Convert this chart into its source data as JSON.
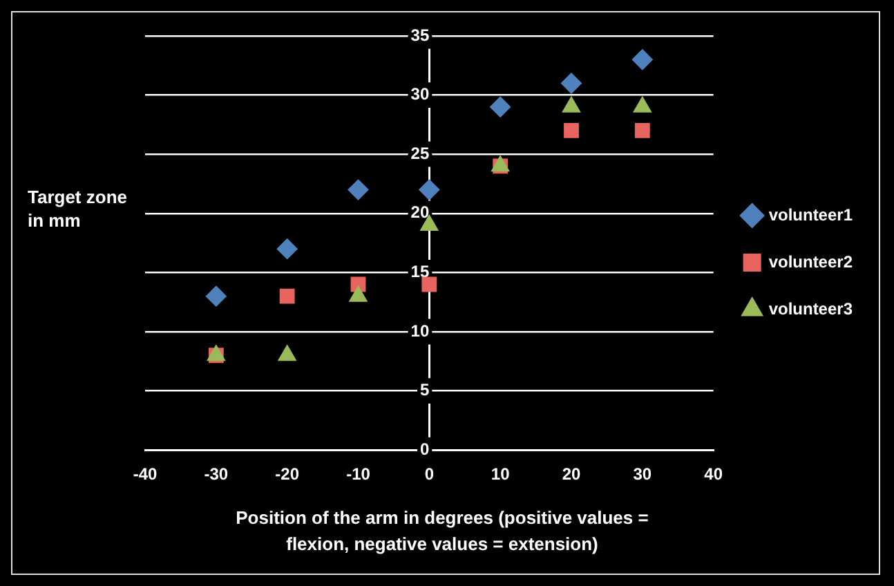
{
  "chart_data": {
    "type": "scatter",
    "xlabel": "Position of the arm in degrees (positive values = flexion, negative values = extension)",
    "ylabel": "Target zone in mm",
    "x": [
      -30,
      -20,
      -10,
      0,
      10,
      20,
      30
    ],
    "series": [
      {
        "name": "volunteer1",
        "color": "#4f81bd",
        "marker": "diamond",
        "values": [
          13,
          17,
          22,
          22,
          29,
          31,
          33
        ]
      },
      {
        "name": "volunteer2",
        "color": "#e8645f",
        "marker": "square",
        "values": [
          8,
          13,
          14,
          14,
          24,
          27,
          27
        ]
      },
      {
        "name": "volunteer3",
        "color": "#9bbb59",
        "marker": "triangle",
        "values": [
          8,
          8,
          13,
          19,
          24,
          29,
          29
        ]
      }
    ],
    "xlim": [
      -40,
      40
    ],
    "xticks": [
      -40,
      -30,
      -20,
      -10,
      0,
      10,
      20,
      30,
      40
    ],
    "ylim": [
      0,
      35
    ],
    "yticks": [
      0,
      5,
      10,
      15,
      20,
      25,
      30,
      35
    ],
    "grid": "y",
    "legend": "right"
  }
}
